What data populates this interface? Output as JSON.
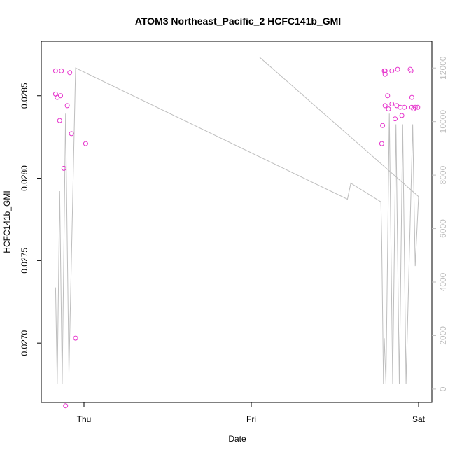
{
  "chart_data": {
    "type": "scatter",
    "title": "ATOM3 Northeast_Pacific_2 HCFC141b_GMI",
    "xlabel": "Date",
    "ylabel": "HCFC141b_GMI",
    "x_ticks": [
      "Thu",
      "Fri",
      "Sat"
    ],
    "ylim": [
      0.02664,
      0.02883
    ],
    "y_ticks": [
      "0.0270",
      "0.0275",
      "0.0280",
      "0.0285"
    ],
    "y2lim": [
      -500,
      13000
    ],
    "y2_ticks": [
      "0",
      "2000",
      "4000",
      "6000",
      "8000",
      "10000",
      "12000"
    ],
    "grid": false,
    "colors": {
      "points": "#e633cc",
      "line": "#bebebe",
      "axis": "#000000",
      "right_axis": "#bebebe"
    },
    "series": [
      {
        "kind": "points",
        "axis": "left",
        "points": [
          [
            -0.17,
            0.02865
          ],
          [
            -0.135,
            0.02865
          ],
          [
            -0.085,
            0.02864
          ],
          [
            -0.17,
            0.02851
          ],
          [
            -0.16,
            0.02849
          ],
          [
            -0.14,
            0.0285
          ],
          [
            -0.1,
            0.02844
          ],
          [
            -0.145,
            0.02835
          ],
          [
            -0.075,
            0.02827
          ],
          [
            -0.12,
            0.02806
          ],
          [
            -0.05,
            0.02703
          ],
          [
            -0.11,
            0.02662
          ],
          [
            0.01,
            0.02821
          ],
          [
            1.795,
            0.02865
          ],
          [
            1.8,
            0.02865
          ],
          [
            1.8,
            0.02863
          ],
          [
            1.84,
            0.02865
          ],
          [
            1.875,
            0.02866
          ],
          [
            1.95,
            0.02866
          ],
          [
            1.955,
            0.02865
          ],
          [
            1.8,
            0.02844
          ],
          [
            1.815,
            0.0285
          ],
          [
            1.82,
            0.02842
          ],
          [
            1.84,
            0.02845
          ],
          [
            1.87,
            0.02844
          ],
          [
            1.89,
            0.02843
          ],
          [
            1.915,
            0.02843
          ],
          [
            1.96,
            0.02849
          ],
          [
            1.96,
            0.02843
          ],
          [
            1.97,
            0.02842
          ],
          [
            1.98,
            0.02843
          ],
          [
            1.995,
            0.02843
          ],
          [
            1.86,
            0.02836
          ],
          [
            1.9,
            0.02838
          ],
          [
            1.785,
            0.02832
          ],
          [
            1.78,
            0.02821
          ]
        ]
      },
      {
        "kind": "line",
        "axis": "right",
        "points": [
          [
            -0.17,
            3800
          ],
          [
            -0.16,
            200
          ],
          [
            -0.145,
            7400
          ],
          [
            -0.13,
            200
          ],
          [
            -0.11,
            10300
          ],
          [
            -0.09,
            600
          ],
          [
            -0.05,
            12000
          ],
          [
            1.575,
            7100
          ],
          [
            1.595,
            7700
          ],
          [
            1.775,
            7000
          ],
          [
            1.78,
            5500
          ],
          [
            1.79,
            200
          ],
          [
            1.795,
            1900
          ],
          [
            1.805,
            200
          ],
          [
            1.825,
            10300
          ],
          [
            1.845,
            200
          ],
          [
            1.865,
            9900
          ],
          [
            1.885,
            200
          ],
          [
            1.905,
            9900
          ],
          [
            1.925,
            200
          ],
          [
            1.965,
            9900
          ],
          [
            1.98,
            4600
          ],
          [
            2.0,
            7200
          ],
          [
            1.05,
            12400
          ]
        ]
      }
    ]
  }
}
